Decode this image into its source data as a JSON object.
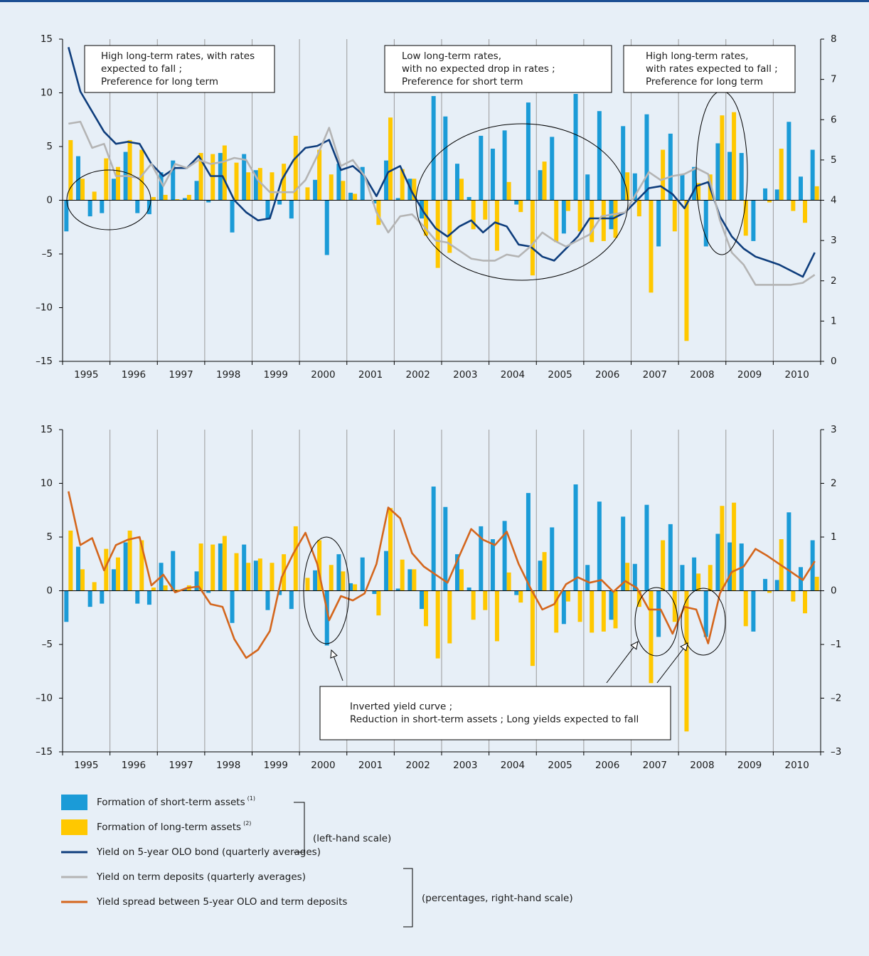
{
  "chart_data": [
    {
      "type": "combo",
      "years": [
        "1995",
        "1996",
        "1997",
        "1998",
        "1999",
        "2000",
        "2001",
        "2002",
        "2003",
        "2004",
        "2005",
        "2006",
        "2007",
        "2008",
        "2009",
        "2010"
      ],
      "ylim": [
        -15,
        15
      ],
      "yticks": [
        {
          "value": -15,
          "label": "–15"
        },
        {
          "value": -10,
          "label": "–10"
        },
        {
          "value": -5,
          "label": "–5"
        },
        0,
        5,
        10,
        15
      ],
      "y2lim": [
        0,
        8
      ],
      "y2ticks": [
        0,
        1,
        2,
        3,
        4,
        5,
        6,
        7,
        8
      ],
      "series": [
        {
          "name": "Formation of short-term assets",
          "footnote": "(1)",
          "type": "bar",
          "color": "#1b9bd7",
          "values": [
            -2.9,
            4.1,
            -1.5,
            -1.2,
            2.0,
            4.5,
            -1.2,
            -1.3,
            2.6,
            3.7,
            0.2,
            1.8,
            -0.2,
            4.4,
            -3.0,
            4.3,
            2.8,
            -1.8,
            -0.4,
            -1.7,
            0.0,
            1.9,
            -5.1,
            3.4,
            0.7,
            3.1,
            -0.3,
            3.7,
            0.2,
            2.0,
            -1.7,
            9.7,
            7.8,
            3.4,
            0.3,
            6.0,
            4.8,
            6.5,
            -0.4,
            9.1,
            2.8,
            5.9,
            -3.1,
            9.9,
            2.4,
            8.3,
            -2.7,
            6.9,
            2.5,
            8.0,
            -4.3,
            6.2,
            2.4,
            3.1,
            -4.3,
            5.3,
            4.5,
            4.4,
            -3.8,
            1.1,
            1.0,
            7.3,
            2.2,
            4.7
          ]
        },
        {
          "name": "Formation of long-term assets",
          "footnote": "(2)",
          "type": "bar",
          "color": "#ffc800",
          "values": [
            5.6,
            2.0,
            0.8,
            3.9,
            3.1,
            5.6,
            4.7,
            0.3,
            0.5,
            0.1,
            0.5,
            4.4,
            4.3,
            5.1,
            3.5,
            2.6,
            3.0,
            2.6,
            3.4,
            6.0,
            1.2,
            4.7,
            2.4,
            1.8,
            0.6,
            0.0,
            -2.3,
            7.7,
            2.9,
            2.0,
            -3.3,
            -6.3,
            -4.9,
            2.0,
            -2.7,
            -1.8,
            -4.7,
            1.7,
            -1.1,
            -7.0,
            3.6,
            -3.9,
            -1.0,
            -2.9,
            -3.9,
            -3.8,
            -3.5,
            2.6,
            -1.5,
            -8.6,
            4.7,
            -2.9,
            -13.1,
            1.6,
            2.4,
            7.9,
            8.2,
            -3.3,
            0.0,
            -0.2,
            4.8,
            -1.0,
            -2.1,
            1.3
          ]
        },
        {
          "name": "Yield on 5-year OLO bond (quarterly averages)",
          "type": "line",
          "axis": "y2",
          "color": "#0e3d7c",
          "values": [
            7.8,
            6.7,
            6.2,
            5.7,
            5.4,
            5.45,
            5.4,
            4.9,
            4.6,
            4.8,
            4.8,
            5.1,
            4.6,
            4.6,
            4.0,
            3.7,
            3.5,
            3.55,
            4.5,
            5.0,
            5.3,
            5.35,
            5.5,
            4.75,
            4.85,
            4.6,
            4.1,
            4.7,
            4.85,
            4.2,
            3.7,
            3.3,
            3.1,
            3.35,
            3.5,
            3.2,
            3.45,
            3.35,
            2.9,
            2.85,
            2.6,
            2.5,
            2.8,
            3.1,
            3.55,
            3.55,
            3.55,
            3.7,
            4.0,
            4.3,
            4.35,
            4.15,
            3.8,
            4.35,
            4.45,
            3.6,
            3.1,
            2.8,
            2.6,
            2.5,
            2.4,
            2.25,
            2.1,
            2.7
          ]
        },
        {
          "name": "Yield on term deposits (quarterly averages)",
          "type": "line",
          "axis": "y2",
          "color": "#b4b4b4",
          "values": [
            5.9,
            5.95,
            5.3,
            5.4,
            4.6,
            4.6,
            4.55,
            4.9,
            4.35,
            4.9,
            4.8,
            5.0,
            4.9,
            4.95,
            5.05,
            5.0,
            4.5,
            4.2,
            4.2,
            4.2,
            4.5,
            5.1,
            5.8,
            4.85,
            5.0,
            4.6,
            3.7,
            3.2,
            3.6,
            3.65,
            3.35,
            3.0,
            2.95,
            2.75,
            2.55,
            2.5,
            2.5,
            2.65,
            2.6,
            2.85,
            3.2,
            3.0,
            2.85,
            3.0,
            3.15,
            3.6,
            3.65,
            3.7,
            4.2,
            4.7,
            4.5,
            4.6,
            4.65,
            4.8,
            4.65,
            3.5,
            2.7,
            2.4,
            1.9,
            1.9,
            1.9,
            1.9,
            1.95,
            2.15
          ]
        }
      ],
      "annotations": [
        {
          "lines": [
            "High long-term rates, with rates",
            "expected to fall ;",
            "Preference for long term"
          ]
        },
        {
          "lines": [
            "Low long-term rates,",
            "with no expected drop in rates ;",
            "Preference for short term"
          ]
        },
        {
          "lines": [
            "High long-term rates,",
            "with rates expected to fall ;",
            "Preference for long term"
          ]
        }
      ]
    },
    {
      "type": "combo",
      "years": [
        "1995",
        "1996",
        "1997",
        "1998",
        "1999",
        "2000",
        "2001",
        "2002",
        "2003",
        "2004",
        "2005",
        "2006",
        "2007",
        "2008",
        "2009",
        "2010"
      ],
      "ylim": [
        -15,
        15
      ],
      "yticks": [
        {
          "value": -15,
          "label": "–15"
        },
        {
          "value": -10,
          "label": "–10"
        },
        {
          "value": -5,
          "label": "–5"
        },
        0,
        5,
        10,
        15
      ],
      "y2lim": [
        -3,
        3
      ],
      "y2ticks": [
        {
          "value": -3,
          "label": "–3"
        },
        {
          "value": -2,
          "label": "–2"
        },
        {
          "value": -1,
          "label": "–1"
        },
        0,
        1,
        2,
        3
      ],
      "series": [
        {
          "name": "Formation of short-term assets",
          "footnote": "(1)",
          "type": "bar",
          "color": "#1b9bd7",
          "values": [
            -2.9,
            4.1,
            -1.5,
            -1.2,
            2.0,
            4.5,
            -1.2,
            -1.3,
            2.6,
            3.7,
            0.2,
            1.8,
            -0.2,
            4.4,
            -3.0,
            4.3,
            2.8,
            -1.8,
            -0.4,
            -1.7,
            0.0,
            1.9,
            -5.1,
            3.4,
            0.7,
            3.1,
            -0.3,
            3.7,
            0.2,
            2.0,
            -1.7,
            9.7,
            7.8,
            3.4,
            0.3,
            6.0,
            4.8,
            6.5,
            -0.4,
            9.1,
            2.8,
            5.9,
            -3.1,
            9.9,
            2.4,
            8.3,
            -2.7,
            6.9,
            2.5,
            8.0,
            -4.3,
            6.2,
            2.4,
            3.1,
            -4.3,
            5.3,
            4.5,
            4.4,
            -3.8,
            1.1,
            1.0,
            7.3,
            2.2,
            4.7
          ]
        },
        {
          "name": "Formation of long-term assets",
          "footnote": "(2)",
          "type": "bar",
          "color": "#ffc800",
          "values": [
            5.6,
            2.0,
            0.8,
            3.9,
            3.1,
            5.6,
            4.7,
            0.3,
            0.5,
            0.1,
            0.5,
            4.4,
            4.3,
            5.1,
            3.5,
            2.6,
            3.0,
            2.6,
            3.4,
            6.0,
            1.2,
            4.7,
            2.4,
            1.8,
            0.6,
            0.0,
            -2.3,
            7.7,
            2.9,
            2.0,
            -3.3,
            -6.3,
            -4.9,
            2.0,
            -2.7,
            -1.8,
            -4.7,
            1.7,
            -1.1,
            -7.0,
            3.6,
            -3.9,
            -1.0,
            -2.9,
            -3.9,
            -3.8,
            -3.5,
            2.6,
            -1.5,
            -8.6,
            4.7,
            -2.9,
            -13.1,
            1.6,
            2.4,
            7.9,
            8.2,
            -3.3,
            0.0,
            -0.2,
            4.8,
            -1.0,
            -2.1,
            1.3
          ]
        },
        {
          "name": "Yield spread between 5-year OLO and term deposits",
          "type": "line",
          "axis": "y2",
          "color": "#d4661d",
          "values": [
            1.85,
            0.85,
            0.98,
            0.38,
            0.85,
            0.95,
            1.0,
            0.1,
            0.3,
            -0.03,
            0.05,
            0.08,
            -0.25,
            -0.3,
            -0.9,
            -1.25,
            -1.1,
            -0.75,
            0.25,
            0.7,
            1.08,
            0.5,
            -0.55,
            -0.1,
            -0.18,
            -0.05,
            0.5,
            1.55,
            1.35,
            0.7,
            0.45,
            0.3,
            0.15,
            0.65,
            1.15,
            0.95,
            0.85,
            1.1,
            0.5,
            0.05,
            -0.35,
            -0.25,
            0.12,
            0.25,
            0.15,
            0.2,
            -0.02,
            0.18,
            0.05,
            -0.35,
            -0.35,
            -0.8,
            -0.3,
            -0.35,
            -0.98,
            -0.05,
            0.35,
            0.45,
            0.78,
            0.65,
            0.5,
            0.35,
            0.2,
            0.55
          ]
        }
      ],
      "annotations": [
        {
          "lines": [
            "Inverted yield curve ;",
            "Reduction in short-term assets ; Long yields expected to fall"
          ]
        }
      ]
    }
  ],
  "scale_notes": [
    "(left-hand scale)",
    "(percentages, right-hand scale)"
  ]
}
